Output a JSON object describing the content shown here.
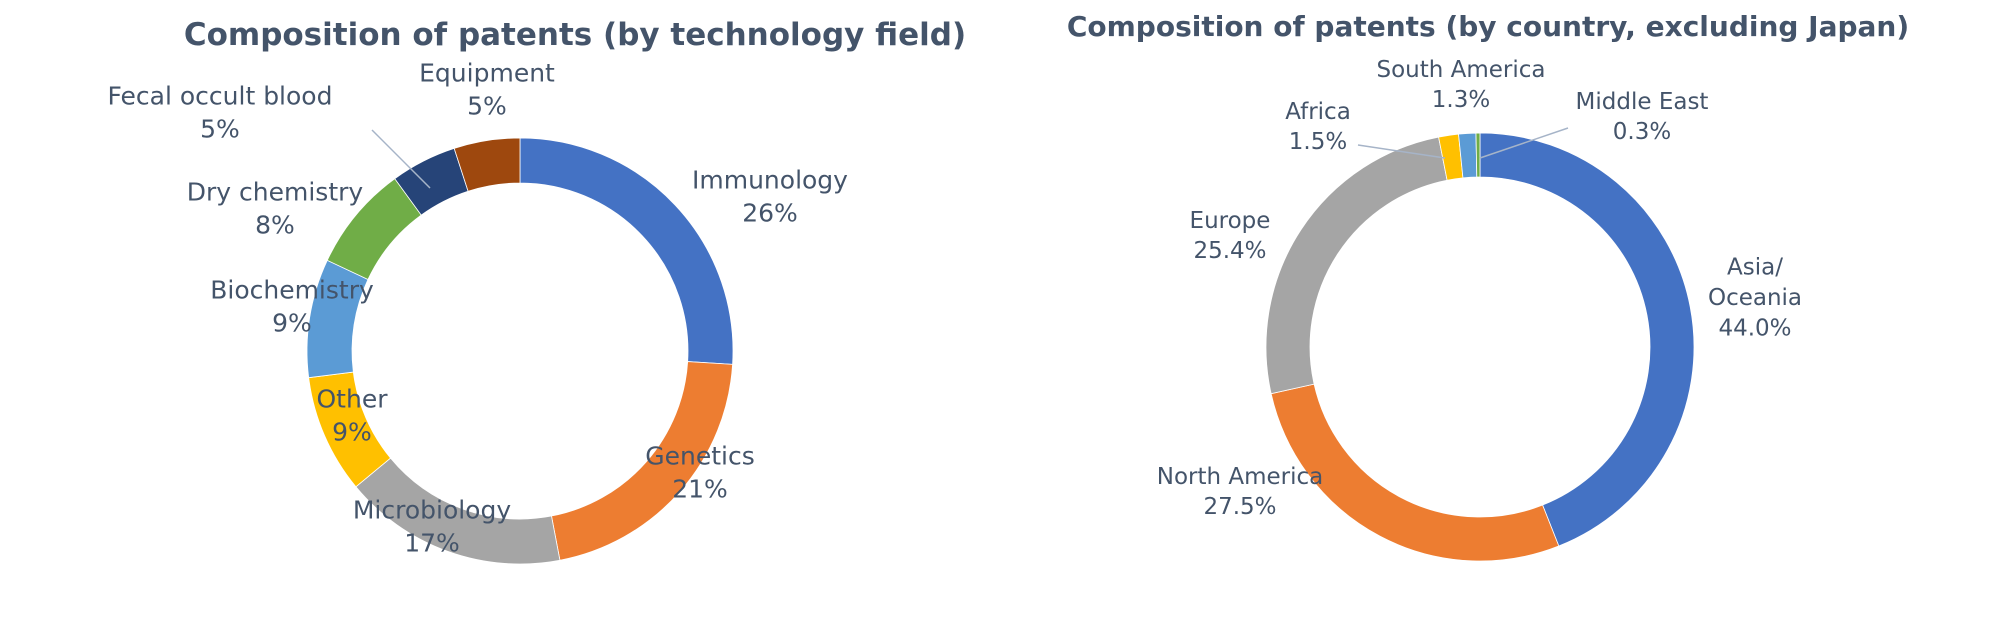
{
  "colors": {
    "text": "#44546a",
    "leader": "#a6b4c8"
  },
  "chart_data": [
    {
      "type": "pie",
      "variant": "donut",
      "title": "Composition of patents (by technology field)",
      "start": "12 o'clock",
      "direction": "clockwise",
      "slices": [
        {
          "label": "Immunology",
          "value": 26,
          "display": "26%",
          "color": "#4472c4"
        },
        {
          "label": "Genetics",
          "value": 21,
          "display": "21%",
          "color": "#ed7d31"
        },
        {
          "label": "Microbiology",
          "value": 17,
          "display": "17%",
          "color": "#a5a5a5"
        },
        {
          "label": "Other",
          "value": 9,
          "display": "9%",
          "color": "#ffc000"
        },
        {
          "label": "Biochemistry",
          "value": 9,
          "display": "9%",
          "color": "#5b9bd5"
        },
        {
          "label": "Dry chemistry",
          "value": 8,
          "display": "8%",
          "color": "#70ad47"
        },
        {
          "label": "Fecal occult blood",
          "value": 5,
          "display": "5%",
          "color": "#264478"
        },
        {
          "label": "Equipment",
          "value": 5,
          "display": "5%",
          "color": "#9e480e"
        }
      ]
    },
    {
      "type": "pie",
      "variant": "donut",
      "title": "Composition of patents (by country, excluding Japan)",
      "start": "12 o'clock",
      "direction": "clockwise",
      "slices": [
        {
          "label": "Asia/\nOceania",
          "value": 44.0,
          "display": "44.0%",
          "color": "#4472c4"
        },
        {
          "label": "North America",
          "value": 27.5,
          "display": "27.5%",
          "color": "#ed7d31"
        },
        {
          "label": "Europe",
          "value": 25.4,
          "display": "25.4%",
          "color": "#a5a5a5"
        },
        {
          "label": "Africa",
          "value": 1.5,
          "display": "1.5%",
          "color": "#ffc000"
        },
        {
          "label": "South America",
          "value": 1.3,
          "display": "1.3%",
          "color": "#5b9bd5"
        },
        {
          "label": "Middle East",
          "value": 0.3,
          "display": "0.3%",
          "color": "#70ad47"
        }
      ]
    }
  ]
}
